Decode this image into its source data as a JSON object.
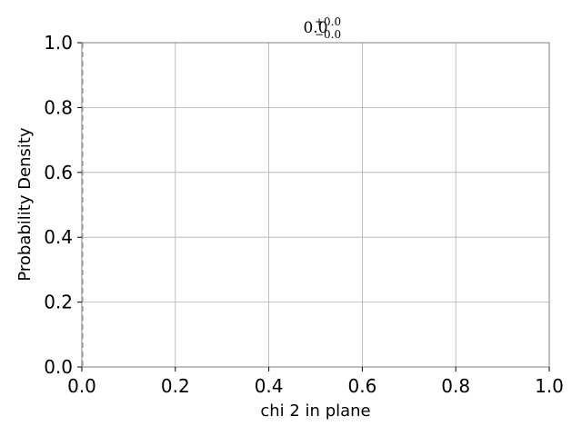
{
  "chart_data": {
    "type": "line",
    "title": {
      "base": "0.0",
      "sup": "+0.0",
      "sub": "−0.0"
    },
    "xlabel": "chi 2 in plane",
    "ylabel": "Probability Density",
    "xlim": [
      0.0,
      1.0
    ],
    "ylim": [
      0.0,
      1.0
    ],
    "xticks": [
      0.0,
      0.2,
      0.4,
      0.6,
      0.8,
      1.0
    ],
    "yticks": [
      0.0,
      0.2,
      0.4,
      0.6,
      0.8,
      1.0
    ],
    "x_tick_labels": [
      "0.0",
      "0.2",
      "0.4",
      "0.6",
      "0.8",
      "1.0"
    ],
    "y_tick_labels": [
      "0.0",
      "0.2",
      "0.4",
      "0.6",
      "0.8",
      "1.0"
    ],
    "grid": true,
    "series": [],
    "markers": [
      {
        "x": 0.0,
        "style": "dashed"
      }
    ],
    "colors": {
      "grid": "#b0b0b0",
      "axis": "#808080",
      "marker": "#b0b0b0",
      "text": "#000000"
    }
  }
}
